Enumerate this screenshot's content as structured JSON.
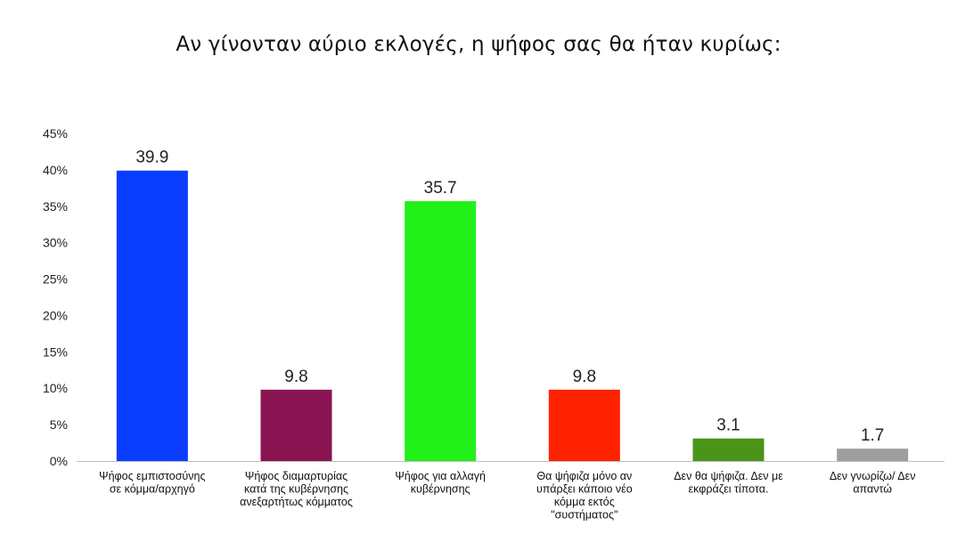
{
  "chart_data": {
    "type": "bar",
    "title": "Αν γίνονταν αύριο εκλογές, η ψήφος σας θα ήταν κυρίως:",
    "xlabel": "",
    "ylabel": "",
    "ylim": [
      0,
      45
    ],
    "yticks": [
      "0%",
      "5%",
      "10%",
      "15%",
      "20%",
      "25%",
      "30%",
      "35%",
      "40%",
      "45%"
    ],
    "grid": false,
    "legend": "none",
    "categories": [
      [
        "Ψήφος εμπιστοσύνης",
        "σε κόμμα/αρχηγό"
      ],
      [
        "Ψήφος διαμαρτυρίας",
        "κατά της κυβέρνησης",
        "ανεξαρτήτως κόμματος"
      ],
      [
        "Ψήφος για αλλαγή",
        "κυβέρνησης"
      ],
      [
        "Θα ψήφιζα μόνο  αν",
        "υπάρξει κάποιο  νέο",
        "κόμμα εκτός",
        "\"συστήματος\""
      ],
      [
        "Δεν θα ψήφιζα.  Δεν με",
        "εκφράζει τίποτα."
      ],
      [
        "Δεν γνωρίζω/ Δεν",
        "απαντώ"
      ]
    ],
    "values": [
      39.9,
      9.8,
      35.7,
      9.8,
      3.1,
      1.7
    ],
    "data_labels": [
      "39.9",
      "9.8",
      "35.7",
      "9.8",
      "3.1",
      "1.7"
    ],
    "colors": [
      "#0a3dff",
      "#8b1452",
      "#22f019",
      "#ff2200",
      "#4a9418",
      "#9e9e9e"
    ]
  }
}
